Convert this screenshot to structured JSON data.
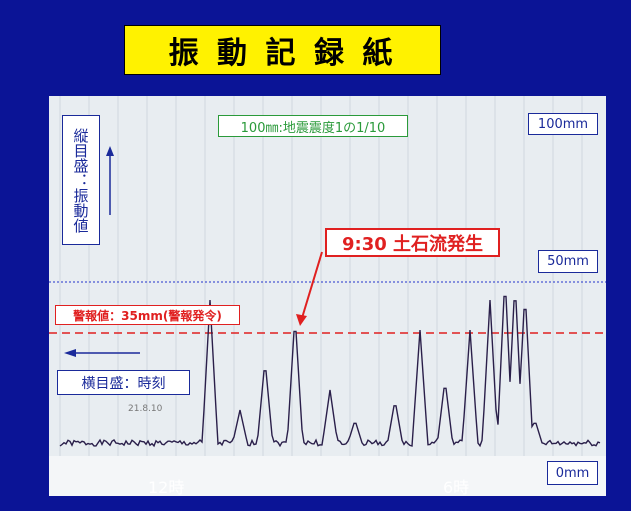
{
  "header": {
    "title": "振 動 記 録 紙"
  },
  "paper": {
    "scale_note": "100㎜:地震震度1の1/10",
    "scale_labels": [
      "100mm",
      "50mm",
      "0mm"
    ],
    "vertical_axis_label": "縦目盛：振動値",
    "horizontal_axis_label": "横目盛：時刻",
    "alarm_label": "警報値：35mm(警報発令)",
    "event_label": "9:30 土石流発生",
    "date_stamp": "21.8.10",
    "time_labels": [
      "12時",
      "6時"
    ]
  }
}
